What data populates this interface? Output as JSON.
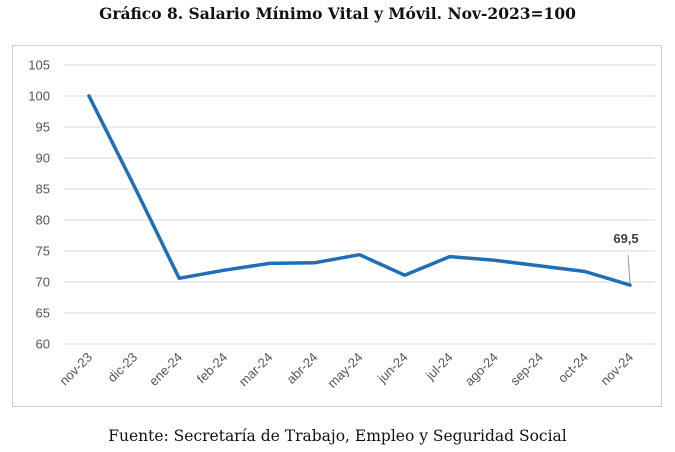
{
  "title": "Gráfico 8. Salario Mínimo Vital y Móvil. Nov-2023=100",
  "source": "Fuente: Secretaría de Trabajo, Empleo y Seguridad Social",
  "chart_data": {
    "type": "line",
    "categories": [
      "nov-23",
      "dic-23",
      "ene-24",
      "feb-24",
      "mar-24",
      "abr-24",
      "may-24",
      "jun-24",
      "jul-24",
      "ago-24",
      "sep-24",
      "oct-24",
      "nov-24"
    ],
    "series": [
      {
        "values": [
          100,
          85.5,
          70.6,
          71.9,
          73.0,
          73.1,
          74.4,
          71.1,
          74.1,
          73.5,
          72.6,
          71.7,
          69.5
        ],
        "color": "#1f6fb8"
      }
    ],
    "y_ticks": [
      "60",
      "65",
      "70",
      "75",
      "80",
      "85",
      "90",
      "95",
      "100",
      "105"
    ],
    "ylim": [
      60,
      105
    ],
    "grid": true,
    "data_labels": [
      {
        "index": 12,
        "text": "69,5"
      }
    ],
    "xlabel": "",
    "ylabel": ""
  }
}
